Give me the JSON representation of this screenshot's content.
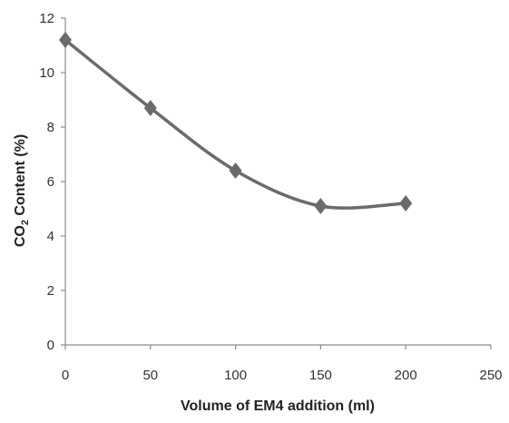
{
  "chart_data": {
    "type": "line",
    "title": "",
    "xlabel": "Volume of EM4 addition (ml)",
    "ylabel": "CO2 Content (%)",
    "ylabel_parts": {
      "before": "CO",
      "sub": "2",
      "after": " Content (%)"
    },
    "xlim": [
      0,
      250
    ],
    "ylim": [
      0,
      12
    ],
    "x_ticks": [
      "0",
      "50",
      "100",
      "150",
      "200",
      "250"
    ],
    "y_ticks": [
      "0",
      "2",
      "4",
      "6",
      "8",
      "10",
      "12"
    ],
    "grid": false,
    "legend": false,
    "smooth": true,
    "marker": "diamond",
    "series": [
      {
        "x": [
          0,
          50,
          100,
          150,
          200
        ],
        "values": [
          11.2,
          8.7,
          6.4,
          5.1,
          5.2
        ],
        "color": "#6b6b6b"
      }
    ]
  }
}
